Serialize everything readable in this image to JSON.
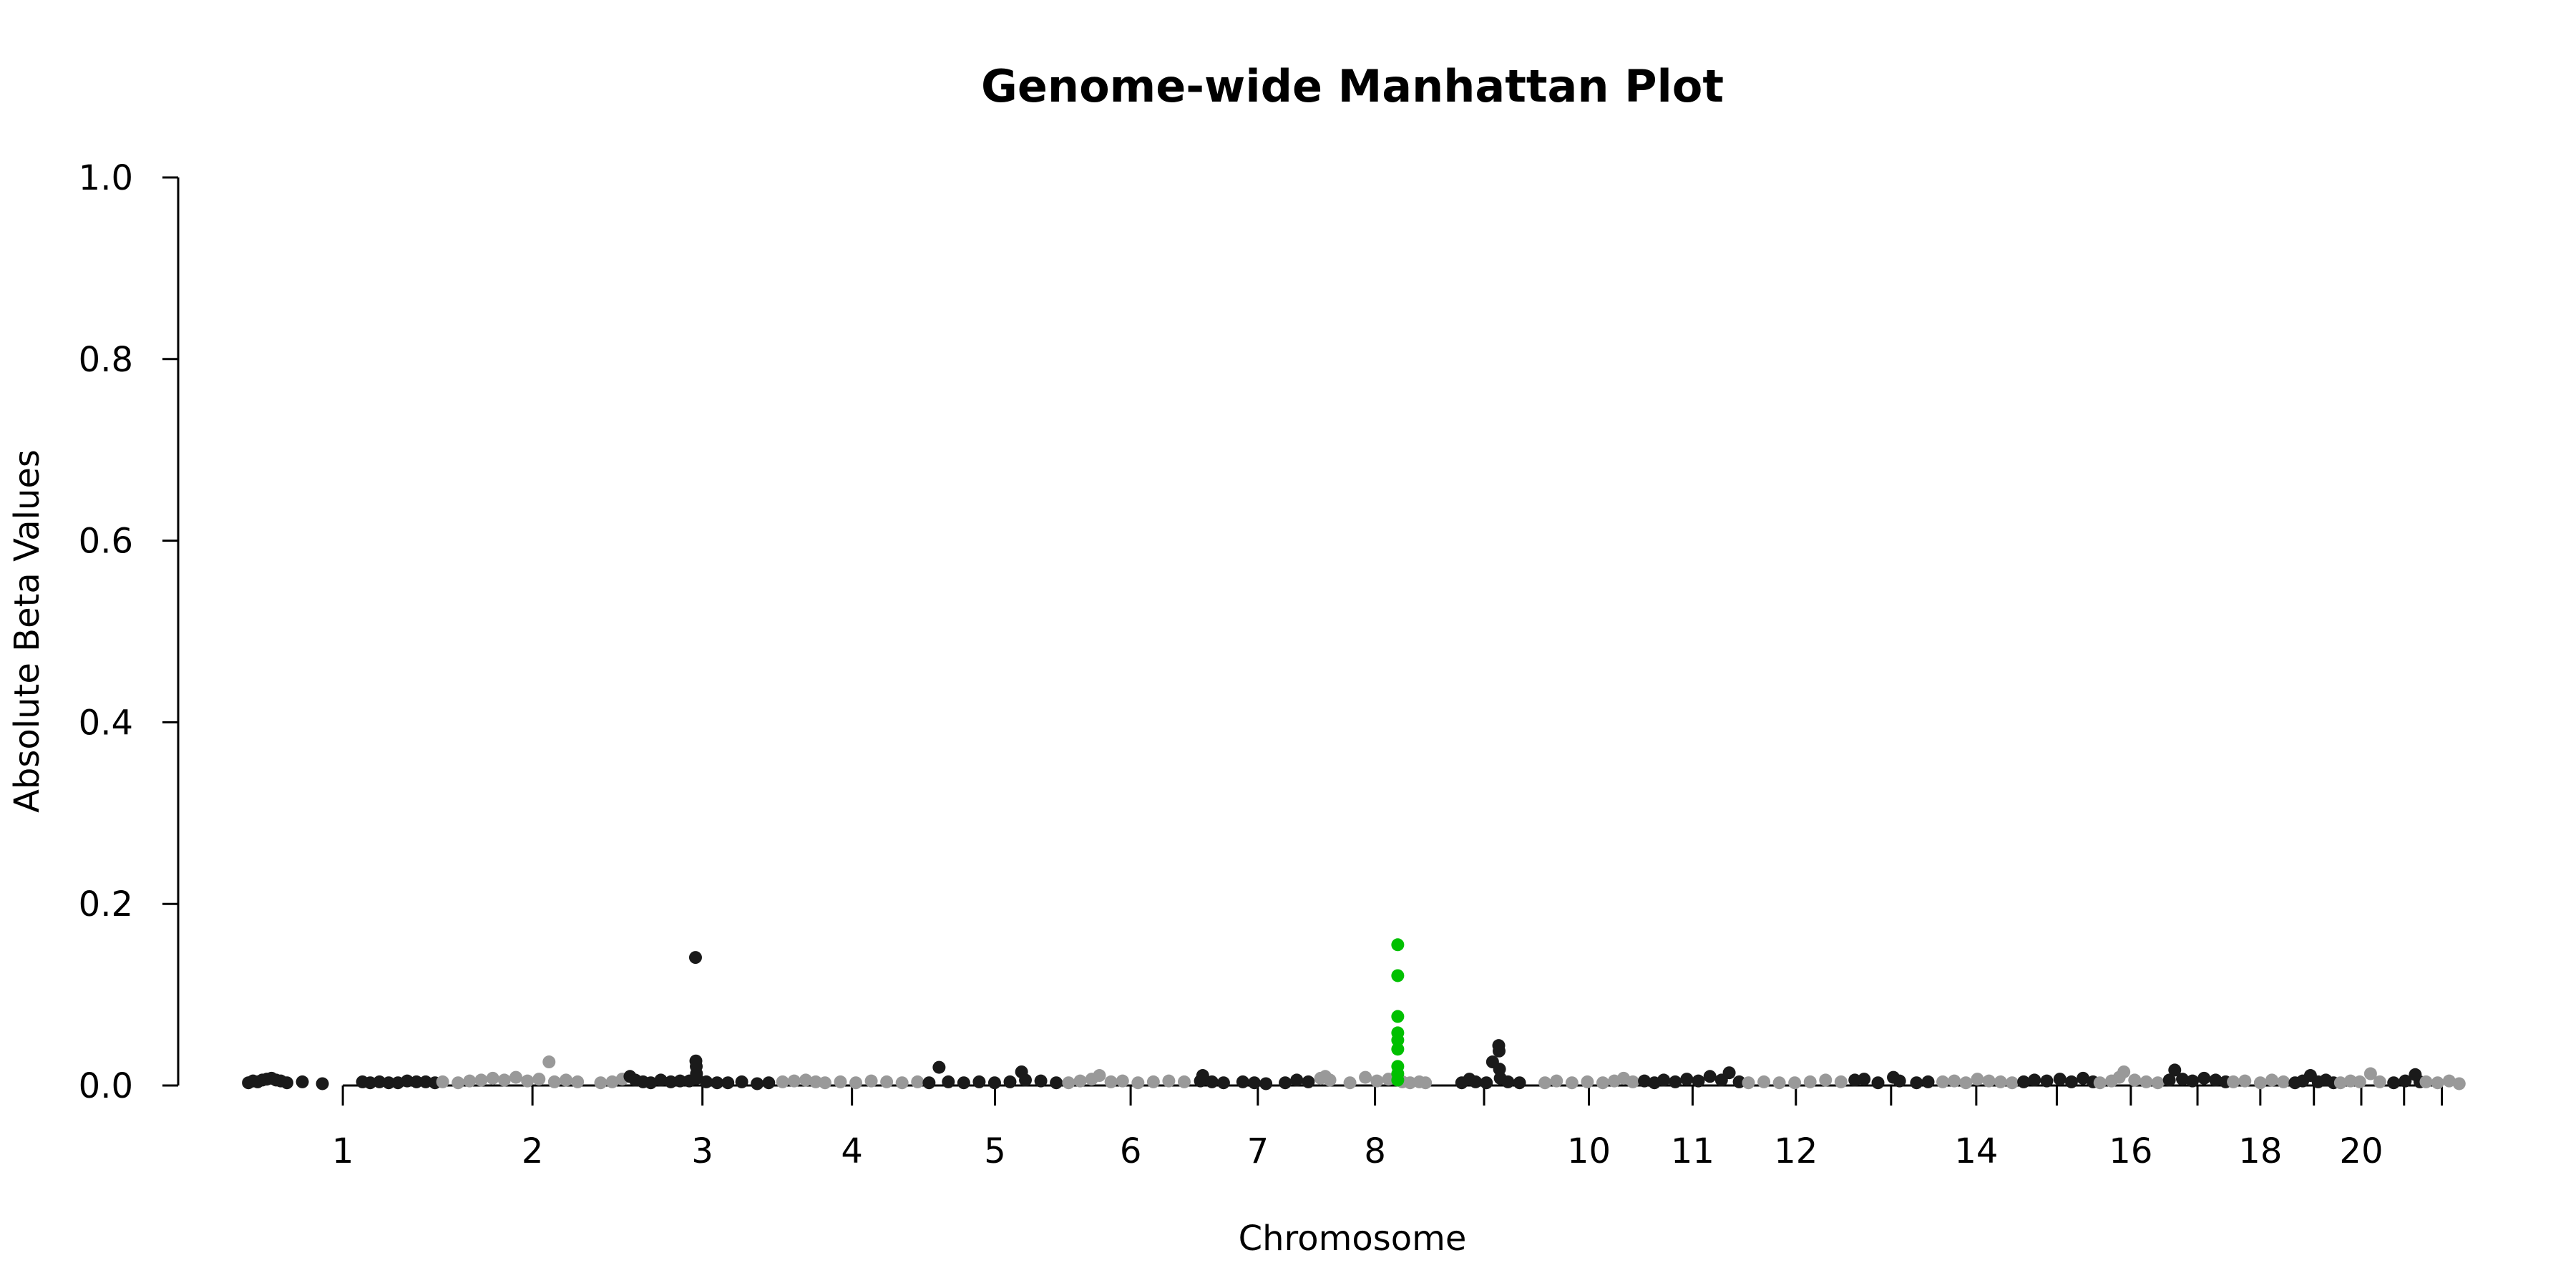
{
  "chart_data": {
    "type": "scatter",
    "title": "Genome-wide Manhattan Plot",
    "xlabel": "Chromosome",
    "ylabel": "Absolute Beta Values",
    "ylim": [
      0,
      1.0
    ],
    "y_ticks": [
      "0.0",
      "0.2",
      "0.4",
      "0.6",
      "0.8",
      "1.0"
    ],
    "x_ticks": [
      {
        "chr": 1,
        "label": "1"
      },
      {
        "chr": 2,
        "label": "2"
      },
      {
        "chr": 3,
        "label": "3"
      },
      {
        "chr": 4,
        "label": "4"
      },
      {
        "chr": 5,
        "label": "5"
      },
      {
        "chr": 6,
        "label": "6"
      },
      {
        "chr": 7,
        "label": "7"
      },
      {
        "chr": 8,
        "label": "8"
      },
      {
        "chr": 9,
        "label": ""
      },
      {
        "chr": 10,
        "label": "10"
      },
      {
        "chr": 11,
        "label": "11"
      },
      {
        "chr": 12,
        "label": "12"
      },
      {
        "chr": 13,
        "label": ""
      },
      {
        "chr": 14,
        "label": "14"
      },
      {
        "chr": 15,
        "label": ""
      },
      {
        "chr": 16,
        "label": "16"
      },
      {
        "chr": 17,
        "label": ""
      },
      {
        "chr": 18,
        "label": "18"
      },
      {
        "chr": 19,
        "label": ""
      },
      {
        "chr": 20,
        "label": "20"
      },
      {
        "chr": 21,
        "label": ""
      },
      {
        "chr": 22,
        "label": ""
      }
    ],
    "chromosomes": [
      {
        "chr": 1,
        "length": 249,
        "color": "#1a1a1a"
      },
      {
        "chr": 2,
        "length": 243,
        "color": "#999999"
      },
      {
        "chr": 3,
        "length": 198,
        "color": "#1a1a1a"
      },
      {
        "chr": 4,
        "length": 190,
        "color": "#999999"
      },
      {
        "chr": 5,
        "length": 181,
        "color": "#1a1a1a"
      },
      {
        "chr": 6,
        "length": 171,
        "color": "#999999"
      },
      {
        "chr": 7,
        "length": 159,
        "color": "#1a1a1a"
      },
      {
        "chr": 8,
        "length": 145,
        "color": "#999999"
      },
      {
        "chr": 9,
        "length": 138,
        "color": "#1a1a1a"
      },
      {
        "chr": 10,
        "length": 134,
        "color": "#999999"
      },
      {
        "chr": 11,
        "length": 135,
        "color": "#1a1a1a"
      },
      {
        "chr": 12,
        "length": 133,
        "color": "#999999"
      },
      {
        "chr": 13,
        "length": 114,
        "color": "#1a1a1a"
      },
      {
        "chr": 14,
        "length": 107,
        "color": "#999999"
      },
      {
        "chr": 15,
        "length": 102,
        "color": "#1a1a1a"
      },
      {
        "chr": 16,
        "length": 90,
        "color": "#999999"
      },
      {
        "chr": 17,
        "length": 83,
        "color": "#1a1a1a"
      },
      {
        "chr": 18,
        "length": 80,
        "color": "#999999"
      },
      {
        "chr": 19,
        "length": 59,
        "color": "#1a1a1a"
      },
      {
        "chr": 20,
        "length": 64,
        "color": "#999999"
      },
      {
        "chr": 21,
        "length": 47,
        "color": "#1a1a1a"
      },
      {
        "chr": 22,
        "length": 51,
        "color": "#999999"
      }
    ],
    "highlight_color": "#00c000",
    "points": [
      {
        "chr": 1,
        "pos": 2,
        "y": 0.003
      },
      {
        "chr": 1,
        "pos": 8,
        "y": 0.005
      },
      {
        "chr": 1,
        "pos": 14,
        "y": 0.004
      },
      {
        "chr": 1,
        "pos": 20,
        "y": 0.006
      },
      {
        "chr": 1,
        "pos": 26,
        "y": 0.007
      },
      {
        "chr": 1,
        "pos": 32,
        "y": 0.008
      },
      {
        "chr": 1,
        "pos": 38,
        "y": 0.006
      },
      {
        "chr": 1,
        "pos": 44,
        "y": 0.005
      },
      {
        "chr": 1,
        "pos": 52,
        "y": 0.003
      },
      {
        "chr": 1,
        "pos": 72,
        "y": 0.004
      },
      {
        "chr": 1,
        "pos": 98,
        "y": 0.002
      },
      {
        "chr": 1,
        "pos": 150,
        "y": 0.004
      },
      {
        "chr": 1,
        "pos": 160,
        "y": 0.003
      },
      {
        "chr": 1,
        "pos": 172,
        "y": 0.004
      },
      {
        "chr": 1,
        "pos": 184,
        "y": 0.003
      },
      {
        "chr": 1,
        "pos": 196,
        "y": 0.003
      },
      {
        "chr": 1,
        "pos": 208,
        "y": 0.005
      },
      {
        "chr": 1,
        "pos": 220,
        "y": 0.004
      },
      {
        "chr": 1,
        "pos": 232,
        "y": 0.004
      },
      {
        "chr": 1,
        "pos": 244,
        "y": 0.003
      },
      {
        "chr": 2,
        "pos": 5,
        "y": 0.004
      },
      {
        "chr": 2,
        "pos": 25,
        "y": 0.003
      },
      {
        "chr": 2,
        "pos": 40,
        "y": 0.005
      },
      {
        "chr": 2,
        "pos": 55,
        "y": 0.006
      },
      {
        "chr": 2,
        "pos": 70,
        "y": 0.008
      },
      {
        "chr": 2,
        "pos": 85,
        "y": 0.006
      },
      {
        "chr": 2,
        "pos": 100,
        "y": 0.009
      },
      {
        "chr": 2,
        "pos": 115,
        "y": 0.005
      },
      {
        "chr": 2,
        "pos": 130,
        "y": 0.007
      },
      {
        "chr": 2,
        "pos": 143,
        "y": 0.026
      },
      {
        "chr": 2,
        "pos": 150,
        "y": 0.004
      },
      {
        "chr": 2,
        "pos": 165,
        "y": 0.006
      },
      {
        "chr": 2,
        "pos": 180,
        "y": 0.004
      },
      {
        "chr": 2,
        "pos": 210,
        "y": 0.003
      },
      {
        "chr": 2,
        "pos": 225,
        "y": 0.004
      },
      {
        "chr": 2,
        "pos": 238,
        "y": 0.007
      },
      {
        "chr": 3,
        "pos": 5,
        "y": 0.01
      },
      {
        "chr": 3,
        "pos": 12,
        "y": 0.006
      },
      {
        "chr": 3,
        "pos": 22,
        "y": 0.004
      },
      {
        "chr": 3,
        "pos": 32,
        "y": 0.003
      },
      {
        "chr": 3,
        "pos": 45,
        "y": 0.006
      },
      {
        "chr": 3,
        "pos": 58,
        "y": 0.004
      },
      {
        "chr": 3,
        "pos": 70,
        "y": 0.005
      },
      {
        "chr": 3,
        "pos": 82,
        "y": 0.005
      },
      {
        "chr": 3,
        "pos": 90,
        "y": 0.141
      },
      {
        "chr": 3,
        "pos": 90.5,
        "y": 0.027
      },
      {
        "chr": 3,
        "pos": 91,
        "y": 0.021
      },
      {
        "chr": 3,
        "pos": 91.3,
        "y": 0.013
      },
      {
        "chr": 3,
        "pos": 91.6,
        "y": 0.008
      },
      {
        "chr": 3,
        "pos": 104,
        "y": 0.004
      },
      {
        "chr": 3,
        "pos": 118,
        "y": 0.003
      },
      {
        "chr": 3,
        "pos": 132,
        "y": 0.003
      },
      {
        "chr": 3,
        "pos": 150,
        "y": 0.004
      },
      {
        "chr": 3,
        "pos": 170,
        "y": 0.002
      },
      {
        "chr": 3,
        "pos": 185,
        "y": 0.003
      },
      {
        "chr": 4,
        "pos": 5,
        "y": 0.004
      },
      {
        "chr": 4,
        "pos": 20,
        "y": 0.005
      },
      {
        "chr": 4,
        "pos": 35,
        "y": 0.006
      },
      {
        "chr": 4,
        "pos": 48,
        "y": 0.004
      },
      {
        "chr": 4,
        "pos": 60,
        "y": 0.003
      },
      {
        "chr": 4,
        "pos": 80,
        "y": 0.004
      },
      {
        "chr": 4,
        "pos": 100,
        "y": 0.003
      },
      {
        "chr": 4,
        "pos": 120,
        "y": 0.005
      },
      {
        "chr": 4,
        "pos": 140,
        "y": 0.004
      },
      {
        "chr": 4,
        "pos": 160,
        "y": 0.003
      },
      {
        "chr": 4,
        "pos": 180,
        "y": 0.004
      },
      {
        "chr": 5,
        "pos": 5,
        "y": 0.003
      },
      {
        "chr": 5,
        "pos": 18,
        "y": 0.02
      },
      {
        "chr": 5,
        "pos": 30,
        "y": 0.004
      },
      {
        "chr": 5,
        "pos": 50,
        "y": 0.003
      },
      {
        "chr": 5,
        "pos": 70,
        "y": 0.004
      },
      {
        "chr": 5,
        "pos": 90,
        "y": 0.003
      },
      {
        "chr": 5,
        "pos": 110,
        "y": 0.004
      },
      {
        "chr": 5,
        "pos": 125,
        "y": 0.015
      },
      {
        "chr": 5,
        "pos": 130,
        "y": 0.006
      },
      {
        "chr": 5,
        "pos": 150,
        "y": 0.005
      },
      {
        "chr": 5,
        "pos": 170,
        "y": 0.003
      },
      {
        "chr": 6,
        "pos": 5,
        "y": 0.003
      },
      {
        "chr": 6,
        "pos": 20,
        "y": 0.005
      },
      {
        "chr": 6,
        "pos": 35,
        "y": 0.007
      },
      {
        "chr": 6,
        "pos": 45,
        "y": 0.011
      },
      {
        "chr": 6,
        "pos": 60,
        "y": 0.004
      },
      {
        "chr": 6,
        "pos": 75,
        "y": 0.005
      },
      {
        "chr": 6,
        "pos": 95,
        "y": 0.003
      },
      {
        "chr": 6,
        "pos": 115,
        "y": 0.004
      },
      {
        "chr": 6,
        "pos": 135,
        "y": 0.005
      },
      {
        "chr": 6,
        "pos": 155,
        "y": 0.004
      },
      {
        "chr": 7,
        "pos": 5,
        "y": 0.005
      },
      {
        "chr": 7,
        "pos": 8,
        "y": 0.011
      },
      {
        "chr": 7,
        "pos": 20,
        "y": 0.004
      },
      {
        "chr": 7,
        "pos": 35,
        "y": 0.003
      },
      {
        "chr": 7,
        "pos": 60,
        "y": 0.004
      },
      {
        "chr": 7,
        "pos": 75,
        "y": 0.003
      },
      {
        "chr": 7,
        "pos": 90,
        "y": 0.002
      },
      {
        "chr": 7,
        "pos": 115,
        "y": 0.003
      },
      {
        "chr": 7,
        "pos": 130,
        "y": 0.006
      },
      {
        "chr": 7,
        "pos": 145,
        "y": 0.004
      },
      {
        "chr": 8,
        "pos": 2,
        "y": 0.008
      },
      {
        "chr": 8,
        "pos": 8,
        "y": 0.01
      },
      {
        "chr": 8,
        "pos": 14,
        "y": 0.006
      },
      {
        "chr": 8,
        "pos": 40,
        "y": 0.003
      },
      {
        "chr": 8,
        "pos": 60,
        "y": 0.009
      },
      {
        "chr": 8,
        "pos": 75,
        "y": 0.005
      },
      {
        "chr": 8,
        "pos": 90,
        "y": 0.007
      },
      {
        "chr": 8,
        "pos": 102,
        "y": 0.155,
        "highlight": true
      },
      {
        "chr": 8,
        "pos": 102,
        "y": 0.121,
        "highlight": true
      },
      {
        "chr": 8,
        "pos": 102,
        "y": 0.076,
        "highlight": true
      },
      {
        "chr": 8,
        "pos": 102,
        "y": 0.058,
        "highlight": true
      },
      {
        "chr": 8,
        "pos": 102,
        "y": 0.05,
        "highlight": true
      },
      {
        "chr": 8,
        "pos": 102,
        "y": 0.04,
        "highlight": true
      },
      {
        "chr": 8,
        "pos": 102,
        "y": 0.021,
        "highlight": true
      },
      {
        "chr": 8,
        "pos": 102,
        "y": 0.013,
        "highlight": true
      },
      {
        "chr": 8,
        "pos": 102,
        "y": 0.006,
        "highlight": true
      },
      {
        "chr": 8,
        "pos": 108,
        "y": 0.004
      },
      {
        "chr": 8,
        "pos": 118,
        "y": 0.003
      },
      {
        "chr": 8,
        "pos": 130,
        "y": 0.004
      },
      {
        "chr": 8,
        "pos": 138,
        "y": 0.003
      },
      {
        "chr": 9,
        "pos": 40,
        "y": 0.003
      },
      {
        "chr": 9,
        "pos": 50,
        "y": 0.007
      },
      {
        "chr": 9,
        "pos": 58,
        "y": 0.004
      },
      {
        "chr": 9,
        "pos": 72,
        "y": 0.003
      },
      {
        "chr": 9,
        "pos": 80,
        "y": 0.026
      },
      {
        "chr": 9,
        "pos": 88,
        "y": 0.044
      },
      {
        "chr": 9,
        "pos": 88.5,
        "y": 0.038
      },
      {
        "chr": 9,
        "pos": 89,
        "y": 0.018
      },
      {
        "chr": 9,
        "pos": 90,
        "y": 0.008
      },
      {
        "chr": 9,
        "pos": 100,
        "y": 0.004
      },
      {
        "chr": 9,
        "pos": 115,
        "y": 0.003
      },
      {
        "chr": 10,
        "pos": 10,
        "y": 0.003
      },
      {
        "chr": 10,
        "pos": 25,
        "y": 0.005
      },
      {
        "chr": 10,
        "pos": 45,
        "y": 0.003
      },
      {
        "chr": 10,
        "pos": 65,
        "y": 0.004
      },
      {
        "chr": 10,
        "pos": 85,
        "y": 0.003
      },
      {
        "chr": 10,
        "pos": 100,
        "y": 0.005
      },
      {
        "chr": 10,
        "pos": 112,
        "y": 0.008
      },
      {
        "chr": 10,
        "pos": 124,
        "y": 0.004
      },
      {
        "chr": 11,
        "pos": 5,
        "y": 0.005
      },
      {
        "chr": 11,
        "pos": 18,
        "y": 0.003
      },
      {
        "chr": 11,
        "pos": 30,
        "y": 0.006
      },
      {
        "chr": 11,
        "pos": 45,
        "y": 0.004
      },
      {
        "chr": 11,
        "pos": 60,
        "y": 0.007
      },
      {
        "chr": 11,
        "pos": 75,
        "y": 0.005
      },
      {
        "chr": 11,
        "pos": 90,
        "y": 0.01
      },
      {
        "chr": 11,
        "pos": 105,
        "y": 0.006
      },
      {
        "chr": 11,
        "pos": 115,
        "y": 0.014
      },
      {
        "chr": 11,
        "pos": 128,
        "y": 0.004
      },
      {
        "chr": 12,
        "pos": 5,
        "y": 0.003
      },
      {
        "chr": 12,
        "pos": 25,
        "y": 0.004
      },
      {
        "chr": 12,
        "pos": 45,
        "y": 0.003
      },
      {
        "chr": 12,
        "pos": 65,
        "y": 0.003
      },
      {
        "chr": 12,
        "pos": 85,
        "y": 0.004
      },
      {
        "chr": 12,
        "pos": 105,
        "y": 0.006
      },
      {
        "chr": 12,
        "pos": 125,
        "y": 0.004
      },
      {
        "chr": 13,
        "pos": 10,
        "y": 0.006
      },
      {
        "chr": 13,
        "pos": 22,
        "y": 0.007
      },
      {
        "chr": 13,
        "pos": 40,
        "y": 0.003
      },
      {
        "chr": 13,
        "pos": 60,
        "y": 0.009
      },
      {
        "chr": 13,
        "pos": 68,
        "y": 0.005
      },
      {
        "chr": 13,
        "pos": 90,
        "y": 0.003
      },
      {
        "chr": 13,
        "pos": 105,
        "y": 0.004
      },
      {
        "chr": 14,
        "pos": 10,
        "y": 0.004
      },
      {
        "chr": 14,
        "pos": 25,
        "y": 0.005
      },
      {
        "chr": 14,
        "pos": 40,
        "y": 0.003
      },
      {
        "chr": 14,
        "pos": 55,
        "y": 0.007
      },
      {
        "chr": 14,
        "pos": 70,
        "y": 0.005
      },
      {
        "chr": 14,
        "pos": 85,
        "y": 0.004
      },
      {
        "chr": 14,
        "pos": 100,
        "y": 0.003
      },
      {
        "chr": 15,
        "pos": 8,
        "y": 0.004
      },
      {
        "chr": 15,
        "pos": 22,
        "y": 0.006
      },
      {
        "chr": 15,
        "pos": 38,
        "y": 0.005
      },
      {
        "chr": 15,
        "pos": 55,
        "y": 0.007
      },
      {
        "chr": 15,
        "pos": 70,
        "y": 0.004
      },
      {
        "chr": 15,
        "pos": 85,
        "y": 0.008
      },
      {
        "chr": 15,
        "pos": 98,
        "y": 0.004
      },
      {
        "chr": 16,
        "pos": 5,
        "y": 0.003
      },
      {
        "chr": 16,
        "pos": 20,
        "y": 0.005
      },
      {
        "chr": 16,
        "pos": 30,
        "y": 0.009
      },
      {
        "chr": 16,
        "pos": 36,
        "y": 0.015
      },
      {
        "chr": 16,
        "pos": 50,
        "y": 0.006
      },
      {
        "chr": 16,
        "pos": 65,
        "y": 0.004
      },
      {
        "chr": 16,
        "pos": 80,
        "y": 0.003
      },
      {
        "chr": 17,
        "pos": 5,
        "y": 0.006
      },
      {
        "chr": 17,
        "pos": 12,
        "y": 0.017
      },
      {
        "chr": 17,
        "pos": 22,
        "y": 0.007
      },
      {
        "chr": 17,
        "pos": 35,
        "y": 0.005
      },
      {
        "chr": 17,
        "pos": 50,
        "y": 0.008
      },
      {
        "chr": 17,
        "pos": 65,
        "y": 0.006
      },
      {
        "chr": 17,
        "pos": 78,
        "y": 0.004
      },
      {
        "chr": 18,
        "pos": 5,
        "y": 0.004
      },
      {
        "chr": 18,
        "pos": 20,
        "y": 0.005
      },
      {
        "chr": 18,
        "pos": 40,
        "y": 0.003
      },
      {
        "chr": 18,
        "pos": 55,
        "y": 0.006
      },
      {
        "chr": 18,
        "pos": 70,
        "y": 0.004
      },
      {
        "chr": 19,
        "pos": 5,
        "y": 0.003
      },
      {
        "chr": 19,
        "pos": 15,
        "y": 0.005
      },
      {
        "chr": 19,
        "pos": 25,
        "y": 0.011
      },
      {
        "chr": 19,
        "pos": 35,
        "y": 0.004
      },
      {
        "chr": 19,
        "pos": 45,
        "y": 0.006
      },
      {
        "chr": 19,
        "pos": 55,
        "y": 0.003
      },
      {
        "chr": 20,
        "pos": 5,
        "y": 0.003
      },
      {
        "chr": 20,
        "pos": 18,
        "y": 0.005
      },
      {
        "chr": 20,
        "pos": 30,
        "y": 0.004
      },
      {
        "chr": 20,
        "pos": 44,
        "y": 0.013
      },
      {
        "chr": 20,
        "pos": 56,
        "y": 0.004
      },
      {
        "chr": 21,
        "pos": 10,
        "y": 0.003
      },
      {
        "chr": 21,
        "pos": 25,
        "y": 0.005
      },
      {
        "chr": 21,
        "pos": 38,
        "y": 0.012
      },
      {
        "chr": 21,
        "pos": 44,
        "y": 0.004
      },
      {
        "chr": 22,
        "pos": 5,
        "y": 0.004
      },
      {
        "chr": 22,
        "pos": 20,
        "y": 0.003
      },
      {
        "chr": 22,
        "pos": 35,
        "y": 0.005
      },
      {
        "chr": 22,
        "pos": 48,
        "y": 0.002
      }
    ]
  }
}
